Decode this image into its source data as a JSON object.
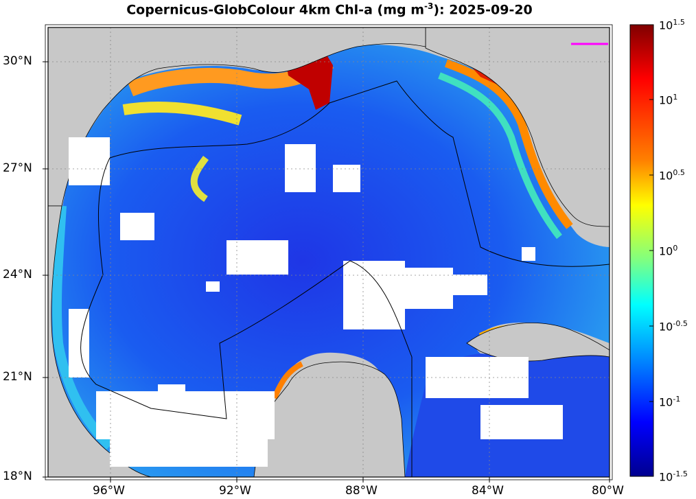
{
  "title": {
    "text": "Copernicus-GlobColour 4km Chl-a (mg m",
    "unit_exp": "-3",
    "text_end": "): 2025-09-20"
  },
  "map": {
    "lat_ticks": [
      "30°N",
      "27°N",
      "24°N",
      "21°N",
      "18°N"
    ],
    "lon_ticks": [
      "96°W",
      "92°W",
      "88°W",
      "84°W",
      "80°W"
    ],
    "land_color": "#c8c8c8",
    "nodata_color": "#ffffff"
  },
  "colorbar": {
    "labels": [
      {
        "base": "10",
        "exp": "1.5"
      },
      {
        "base": "10",
        "exp": "1"
      },
      {
        "base": "10",
        "exp": "0.5"
      },
      {
        "base": "10",
        "exp": "0"
      },
      {
        "base": "10",
        "exp": "-0.5"
      },
      {
        "base": "10",
        "exp": "-1"
      },
      {
        "base": "10",
        "exp": "-1.5"
      }
    ],
    "colors": [
      "#7f0000",
      "#ff0000",
      "#ff7f00",
      "#ffff00",
      "#7fff7f",
      "#00ffff",
      "#007fff",
      "#0000ff",
      "#00008f"
    ]
  }
}
